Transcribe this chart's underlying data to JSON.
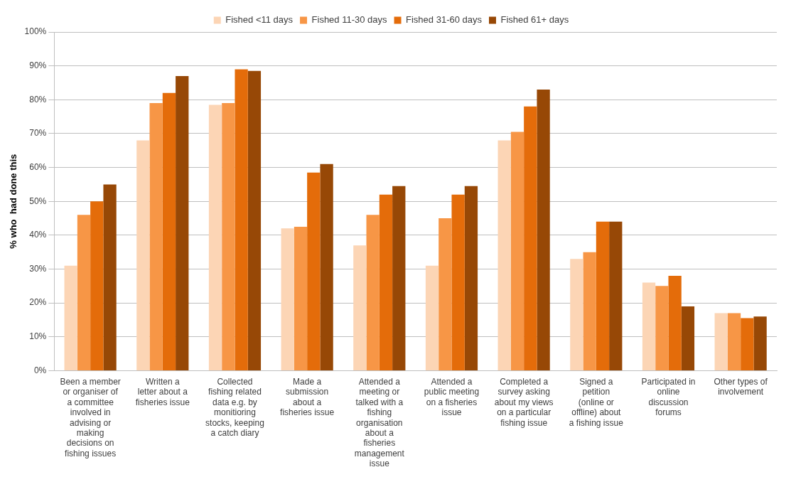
{
  "chart_data": {
    "type": "bar",
    "ylabel": "% who  had done this",
    "categories": [
      "Been a member or organiser of a committee involved in advising or making decisions on fishing issues",
      "Written a letter about a fisheries issue",
      "Collected fishing related data e.g. by monitioring stocks, keeping a catch diary",
      "Made a submission about a fisheries issue",
      "Attended a meeting or talked with a fishing organisation about a fisheries management issue",
      "Attended a public meeting on a fisheries issue",
      "Completed a survey asking about my views on a particular fishing issue",
      "Signed a petition (online or offline) about a fishing issue",
      "Participated in online discussion forums",
      "Other types of involvement"
    ],
    "series": [
      {
        "name": "Fished <11 days",
        "color": "#fcd5b5",
        "values": [
          31,
          68,
          78.5,
          42,
          37,
          31,
          68,
          33,
          26,
          17
        ]
      },
      {
        "name": "Fished 11-30 days",
        "color": "#f79646",
        "values": [
          46,
          79,
          79,
          42.5,
          46,
          45,
          70.5,
          35,
          25,
          17
        ]
      },
      {
        "name": "Fished 31-60 days",
        "color": "#e46c0a",
        "values": [
          50,
          82,
          89,
          58.5,
          52,
          52,
          78,
          44,
          28,
          15.5
        ]
      },
      {
        "name": "Fished 61+ days",
        "color": "#974806",
        "values": [
          55,
          87,
          88.5,
          61,
          54.5,
          54.5,
          83,
          44,
          19,
          16
        ]
      }
    ],
    "ylim": [
      0,
      100
    ],
    "yticks": [
      {
        "value": 0,
        "label": "0%"
      },
      {
        "value": 10,
        "label": "10%"
      },
      {
        "value": 20,
        "label": "20%"
      },
      {
        "value": 30,
        "label": "30%"
      },
      {
        "value": 40,
        "label": "40%"
      },
      {
        "value": 50,
        "label": "50%"
      },
      {
        "value": 60,
        "label": "60%"
      },
      {
        "value": 70,
        "label": "70%"
      },
      {
        "value": 80,
        "label": "80%"
      },
      {
        "value": 90,
        "label": "90%"
      },
      {
        "value": 100,
        "label": "100%"
      }
    ],
    "grid": "y",
    "legend": "top"
  }
}
